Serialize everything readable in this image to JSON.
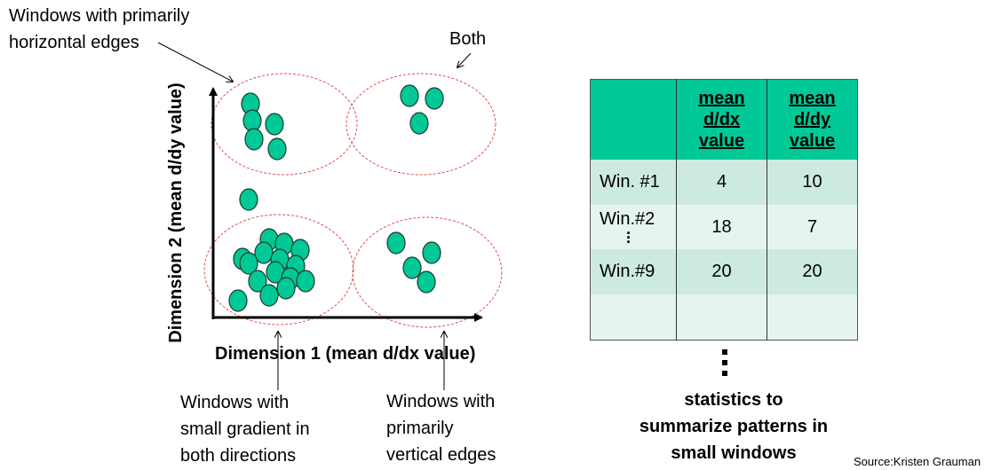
{
  "annotations": {
    "horizontal_edges": "Windows with primarily\nhorizontal edges",
    "both": "Both",
    "small_gradient": "Windows with\nsmall gradient in\nboth directions",
    "vertical_edges": "Windows with\nprimarily\nvertical edges"
  },
  "axes": {
    "x_label": "Dimension 1 (mean d/dx value)",
    "y_label": "Dimension 2 (mean d/dy value)"
  },
  "table": {
    "headers": [
      "",
      "mean\nd/dx\nvalue",
      "mean\nd/dy\nvalue"
    ],
    "rows": [
      {
        "label": "Win. #1",
        "dx": "4",
        "dy": "10"
      },
      {
        "label": "Win.#2",
        "dx": "18",
        "dy": "7"
      },
      {
        "label": "Win.#9",
        "dx": "20",
        "dy": "20"
      },
      {
        "label": "",
        "dx": "",
        "dy": ""
      }
    ]
  },
  "caption": "statistics to\nsummarize patterns in\nsmall windows",
  "source": "Source:Kristen Grauman",
  "colors": {
    "point_fill": "#00c896",
    "ellipse_stroke": "#e05050",
    "header_fill": "#00c896",
    "row_fill_dark": "#cdeadf",
    "row_fill_light": "#e6f4ee"
  }
}
